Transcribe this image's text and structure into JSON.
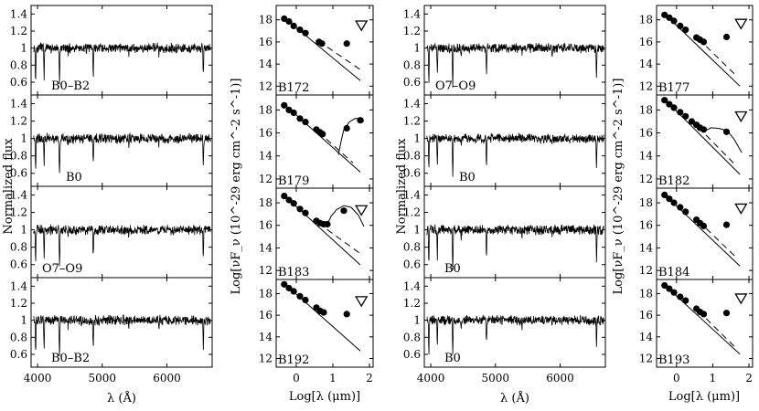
{
  "chart_data": {
    "type": "multi-panel spectra and SED figure",
    "spectra_axes": {
      "xlabel": "λ (Å)",
      "ylabel": "Normalized flux",
      "xlim": [
        3900,
        6700
      ],
      "ylim": [
        0.45,
        1.5
      ],
      "xticks": [
        "4000",
        "5000",
        "6000"
      ],
      "xtick_values": [
        4000,
        5000,
        6000
      ],
      "yticks": [
        "0.6",
        "0.8",
        "1",
        "1.2",
        "1.4"
      ],
      "ytick_values": [
        0.6,
        0.8,
        1.0,
        1.2,
        1.4
      ],
      "absorption_lines_A": [
        3970,
        4101,
        4340,
        4861,
        6563
      ]
    },
    "sed_axes": {
      "xlabel": "Log[λ (μm)]",
      "ylabel": "Log[νF_ν (10^-29 erg cm^-2 s^-1)]",
      "xlim": [
        -0.55,
        2.1
      ],
      "ylim": [
        11.2,
        19.3
      ],
      "xticks": [
        "0",
        "1",
        "2"
      ],
      "xtick_values": [
        0,
        1,
        2
      ],
      "yticks": [
        "12",
        "14",
        "16",
        "18"
      ],
      "ytick_values": [
        12,
        14,
        16,
        18
      ]
    },
    "spectra": [
      {
        "label": "B0–B2"
      },
      {
        "label": "B0"
      },
      {
        "label": "O7–O9"
      },
      {
        "label": "B0–B2"
      },
      {
        "label": "O7–O9"
      },
      {
        "label": "B0"
      },
      {
        "label": "B0"
      },
      {
        "label": "B0"
      }
    ],
    "seds": [
      {
        "id": "B172",
        "points": [
          [
            -0.33,
            18.1
          ],
          [
            -0.2,
            17.85
          ],
          [
            -0.07,
            17.45
          ],
          [
            0.1,
            17.1
          ],
          [
            0.25,
            16.8
          ],
          [
            0.62,
            16.0
          ],
          [
            0.7,
            15.85
          ],
          [
            1.38,
            15.85
          ]
        ],
        "model": [
          [
            -0.35,
            18.25
          ],
          [
            1.75,
            12.5
          ]
        ],
        "dashed": [
          [
            0.6,
            16.1
          ],
          [
            1.75,
            13.5
          ]
        ],
        "upper_limits": [
          [
            1.78,
            17.5
          ]
        ],
        "bump": []
      },
      {
        "id": "B179",
        "points": [
          [
            -0.33,
            18.4
          ],
          [
            -0.2,
            18.0
          ],
          [
            -0.07,
            17.75
          ],
          [
            0.1,
            17.25
          ],
          [
            0.25,
            16.95
          ],
          [
            0.55,
            16.3
          ],
          [
            0.65,
            16.05
          ],
          [
            0.72,
            15.9
          ],
          [
            1.38,
            16.4
          ],
          [
            1.75,
            17.1
          ]
        ],
        "model": [
          [
            -0.35,
            18.55
          ],
          [
            1.75,
            12.6
          ]
        ],
        "dashed": [
          [
            0.6,
            16.1
          ],
          [
            1.55,
            13.4
          ]
        ],
        "upper_limits": [],
        "bump": [
          [
            1.15,
            14.1
          ],
          [
            1.22,
            15.2
          ],
          [
            1.3,
            16.3
          ],
          [
            1.45,
            16.95
          ],
          [
            1.6,
            17.25
          ],
          [
            1.75,
            17.25
          ],
          [
            1.85,
            17.0
          ]
        ]
      },
      {
        "id": "B183",
        "points": [
          [
            -0.33,
            18.6
          ],
          [
            -0.2,
            18.25
          ],
          [
            -0.07,
            17.95
          ],
          [
            0.1,
            17.45
          ],
          [
            0.25,
            17.1
          ],
          [
            0.55,
            16.4
          ],
          [
            0.65,
            16.2
          ],
          [
            0.75,
            16.1
          ],
          [
            0.85,
            16.1
          ],
          [
            1.3,
            17.3
          ]
        ],
        "model": [
          [
            -0.35,
            18.7
          ],
          [
            1.75,
            12.5
          ]
        ],
        "dashed": [
          [
            0.6,
            16.2
          ],
          [
            1.75,
            13.5
          ]
        ],
        "upper_limits": [
          [
            1.78,
            17.35
          ]
        ],
        "bump": [
          [
            0.85,
            16.1
          ],
          [
            0.95,
            16.8
          ],
          [
            1.1,
            17.4
          ],
          [
            1.3,
            17.75
          ],
          [
            1.5,
            17.6
          ],
          [
            1.7,
            16.9
          ],
          [
            1.85,
            15.9
          ]
        ]
      },
      {
        "id": "B192",
        "points": [
          [
            -0.33,
            18.85
          ],
          [
            -0.2,
            18.5
          ],
          [
            -0.07,
            18.2
          ],
          [
            0.1,
            17.75
          ],
          [
            0.25,
            17.4
          ],
          [
            0.55,
            16.7
          ],
          [
            0.65,
            16.4
          ],
          [
            0.75,
            16.25
          ],
          [
            1.38,
            16.1
          ]
        ],
        "model": [
          [
            -0.35,
            19.0
          ],
          [
            1.75,
            12.7
          ]
        ],
        "dashed": [],
        "upper_limits": [
          [
            1.78,
            17.3
          ]
        ],
        "bump": []
      },
      {
        "id": "B177",
        "points": [
          [
            -0.33,
            18.45
          ],
          [
            -0.2,
            18.2
          ],
          [
            -0.07,
            17.9
          ],
          [
            0.1,
            17.45
          ],
          [
            0.25,
            17.1
          ],
          [
            0.55,
            16.4
          ],
          [
            0.65,
            16.2
          ],
          [
            0.75,
            16.0
          ],
          [
            1.38,
            16.45
          ]
        ],
        "model": [
          [
            -0.35,
            18.6
          ],
          [
            1.75,
            12.0
          ]
        ],
        "dashed": [
          [
            0.6,
            16.3
          ],
          [
            1.6,
            13.1
          ]
        ],
        "upper_limits": [
          [
            1.78,
            17.65
          ]
        ],
        "bump": []
      },
      {
        "id": "B182",
        "points": [
          [
            -0.33,
            18.85
          ],
          [
            -0.2,
            18.5
          ],
          [
            -0.07,
            18.2
          ],
          [
            0.1,
            17.8
          ],
          [
            0.25,
            17.45
          ],
          [
            0.42,
            17.0
          ],
          [
            0.55,
            16.7
          ],
          [
            0.65,
            16.45
          ],
          [
            0.75,
            16.3
          ],
          [
            1.38,
            16.1
          ]
        ],
        "model": [
          [
            -0.35,
            19.0
          ],
          [
            1.75,
            12.4
          ]
        ],
        "dashed": [
          [
            0.6,
            16.5
          ],
          [
            1.6,
            13.3
          ]
        ],
        "upper_limits": [
          [
            1.78,
            17.45
          ]
        ],
        "bump": [
          [
            0.75,
            16.1
          ],
          [
            0.95,
            16.45
          ],
          [
            1.15,
            16.4
          ],
          [
            1.4,
            16.2
          ],
          [
            1.6,
            15.4
          ],
          [
            1.8,
            14.3
          ]
        ]
      },
      {
        "id": "B184",
        "points": [
          [
            -0.33,
            18.7
          ],
          [
            -0.2,
            18.35
          ],
          [
            -0.07,
            18.0
          ],
          [
            0.1,
            17.6
          ],
          [
            0.25,
            17.2
          ],
          [
            0.55,
            16.5
          ],
          [
            0.65,
            16.2
          ],
          [
            0.75,
            15.95
          ],
          [
            1.38,
            16.05
          ]
        ],
        "model": [
          [
            -0.35,
            18.8
          ],
          [
            1.75,
            12.4
          ]
        ],
        "dashed": [
          [
            0.6,
            16.4
          ],
          [
            1.6,
            13.3
          ]
        ],
        "upper_limits": [
          [
            1.78,
            17.5
          ]
        ],
        "bump": []
      },
      {
        "id": "B193",
        "points": [
          [
            -0.33,
            18.75
          ],
          [
            -0.2,
            18.45
          ],
          [
            -0.07,
            18.1
          ],
          [
            0.1,
            17.7
          ],
          [
            0.25,
            17.35
          ],
          [
            0.55,
            16.6
          ],
          [
            0.65,
            16.3
          ],
          [
            0.75,
            16.1
          ],
          [
            1.38,
            16.2
          ]
        ],
        "model": [
          [
            -0.35,
            18.85
          ],
          [
            1.75,
            12.4
          ]
        ],
        "dashed": [
          [
            0.6,
            16.4
          ],
          [
            1.6,
            13.1
          ]
        ],
        "upper_limits": [
          [
            1.78,
            17.55
          ]
        ],
        "bump": []
      }
    ]
  }
}
